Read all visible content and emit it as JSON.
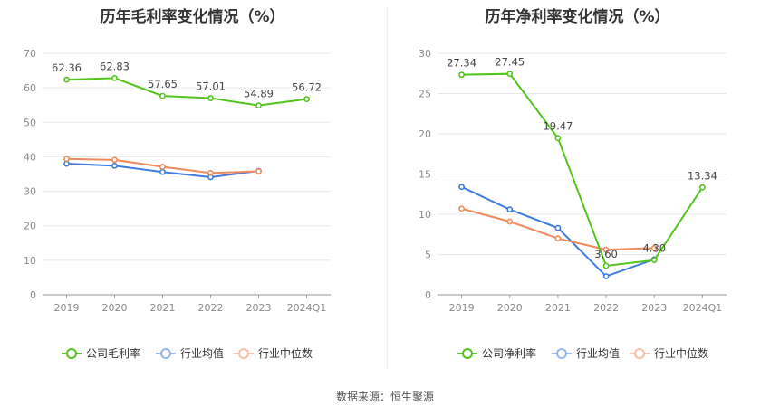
{
  "source": "数据来源：恒生聚源",
  "chart_data": [
    {
      "type": "line",
      "title": "历年毛利率变化情况（%）",
      "categories": [
        "2019",
        "2020",
        "2021",
        "2022",
        "2023",
        "2024Q1"
      ],
      "ylim": [
        0,
        70
      ],
      "yticks": [
        0,
        10,
        20,
        30,
        40,
        50,
        60,
        70
      ],
      "grid": true,
      "legend_position": "bottom",
      "series": [
        {
          "name": "公司毛利率",
          "color": "#52c41a",
          "values": [
            62.36,
            62.83,
            57.65,
            57.01,
            54.89,
            56.72
          ],
          "labels": [
            "62.36",
            "62.83",
            "57.65",
            "57.01",
            "54.89",
            "56.72"
          ]
        },
        {
          "name": "行业均值",
          "color": "#3f7be0",
          "values": [
            38.0,
            37.4,
            35.6,
            34.1,
            35.9,
            null
          ]
        },
        {
          "name": "行业中位数",
          "color": "#f08a5d",
          "values": [
            39.4,
            39.1,
            37.1,
            35.3,
            35.8,
            null
          ]
        }
      ]
    },
    {
      "type": "line",
      "title": "历年净利率变化情况（%）",
      "categories": [
        "2019",
        "2020",
        "2021",
        "2022",
        "2023",
        "2024Q1"
      ],
      "ylim": [
        0,
        30
      ],
      "yticks": [
        0,
        5,
        10,
        15,
        20,
        25,
        30
      ],
      "grid": true,
      "legend_position": "bottom",
      "series": [
        {
          "name": "公司净利率",
          "color": "#52c41a",
          "values": [
            27.34,
            27.45,
            19.47,
            3.6,
            4.3,
            13.34
          ],
          "labels": [
            "27.34",
            "27.45",
            "19.47",
            "3.60",
            "4.30",
            "13.34"
          ]
        },
        {
          "name": "行业均值",
          "color": "#3f7be0",
          "values": [
            13.4,
            10.6,
            8.3,
            2.3,
            4.4,
            null
          ]
        },
        {
          "name": "行业中位数",
          "color": "#f08a5d",
          "values": [
            10.7,
            9.1,
            7.0,
            5.6,
            5.8,
            null
          ]
        }
      ]
    }
  ]
}
